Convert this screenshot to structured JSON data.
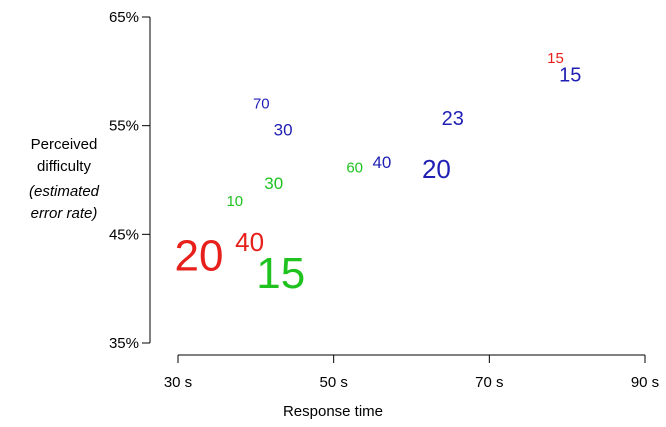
{
  "chart_data": {
    "type": "scatter",
    "xlabel": "Response time",
    "ylabel_lines": [
      "Perceived",
      "difficulty"
    ],
    "ylabel_sub_lines": [
      "(estimated",
      "error rate)"
    ],
    "xlim": [
      30,
      90
    ],
    "ylim": [
      35,
      65
    ],
    "x_ticks": [
      {
        "value": 30,
        "label": "30 s"
      },
      {
        "value": 50,
        "label": "50 s"
      },
      {
        "value": 70,
        "label": "70 s"
      },
      {
        "value": 90,
        "label": "90 s"
      }
    ],
    "y_ticks": [
      {
        "value": 35,
        "label": "35%"
      },
      {
        "value": 45,
        "label": "45%"
      },
      {
        "value": 55,
        "label": "55%"
      },
      {
        "value": 65,
        "label": "65%"
      }
    ],
    "grid": false,
    "legend": "none",
    "colors": {
      "red": "#e8201c",
      "green": "#1fc21f",
      "blue": "#1f1fb4"
    },
    "points": [
      {
        "label": "20",
        "x": 32.7,
        "y": 43.0,
        "color": "red",
        "size": 44
      },
      {
        "label": "40",
        "x": 39.2,
        "y": 44.3,
        "color": "red",
        "size": 26
      },
      {
        "label": "15",
        "x": 43.2,
        "y": 41.4,
        "color": "green",
        "size": 44
      },
      {
        "label": "10",
        "x": 37.3,
        "y": 48.0,
        "color": "green",
        "size": 15
      },
      {
        "label": "30",
        "x": 42.3,
        "y": 49.7,
        "color": "green",
        "size": 17
      },
      {
        "label": "60",
        "x": 52.7,
        "y": 51.1,
        "color": "green",
        "size": 15
      },
      {
        "label": "70",
        "x": 40.7,
        "y": 57.0,
        "color": "blue",
        "size": 15
      },
      {
        "label": "30",
        "x": 43.5,
        "y": 54.6,
        "color": "blue",
        "size": 17
      },
      {
        "label": "40",
        "x": 56.2,
        "y": 51.6,
        "color": "blue",
        "size": 17
      },
      {
        "label": "20",
        "x": 63.2,
        "y": 51.0,
        "color": "blue",
        "size": 26
      },
      {
        "label": "23",
        "x": 65.3,
        "y": 55.6,
        "color": "blue",
        "size": 20
      },
      {
        "label": "15",
        "x": 78.5,
        "y": 61.2,
        "color": "red",
        "size": 15
      },
      {
        "label": "15",
        "x": 80.4,
        "y": 59.6,
        "color": "blue",
        "size": 20
      }
    ]
  }
}
